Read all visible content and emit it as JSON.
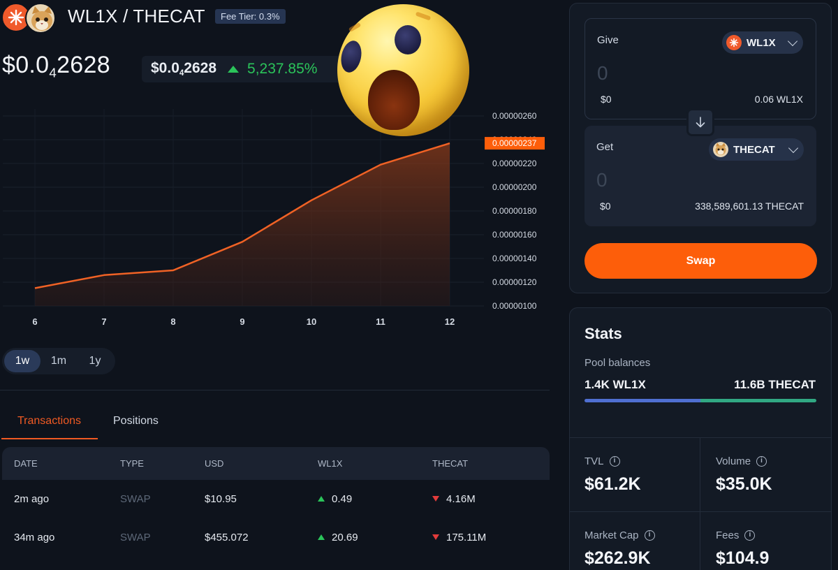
{
  "header": {
    "pair": "WL1X / THECAT",
    "fee_tier": "Fee Tier: 0.3%",
    "price_prefix": "$0.0",
    "price_sub": "4",
    "price_suffix": "2628",
    "chip_prefix": "$0.0",
    "chip_sub": "4",
    "chip_suffix": "2628",
    "change": "5,237.85%"
  },
  "chart_data": {
    "type": "area",
    "x": [
      6,
      7,
      8,
      9,
      10,
      11,
      12
    ],
    "values": [
      1.15e-06,
      1.26e-06,
      1.3e-06,
      1.54e-06,
      1.89e-06,
      2.19e-06,
      2.37e-06
    ],
    "y_ticks": [
      "0.00000260",
      "0.00000240",
      "0.00000220",
      "0.00000200",
      "0.00000180",
      "0.00000160",
      "0.00000140",
      "0.00000120",
      "0.00000100"
    ],
    "current_label": "0.00000237",
    "ylim": [
      1e-06,
      2.6e-06
    ],
    "line_color": "#f06225",
    "label_color": "#fd5e0a"
  },
  "range_buttons": [
    "1w",
    "1m",
    "1y"
  ],
  "tabs": {
    "transactions": "Transactions",
    "positions": "Positions"
  },
  "table": {
    "headers": {
      "date": "DATE",
      "type": "TYPE",
      "usd": "USD",
      "wl1x": "WL1X",
      "thecat": "THECAT"
    },
    "rows": [
      {
        "date": "2m ago",
        "type": "SWAP",
        "usd": "$10.95",
        "wl1x": "0.49",
        "thecat": "4.16M"
      },
      {
        "date": "34m ago",
        "type": "SWAP",
        "usd": "$455.072",
        "wl1x": "20.69",
        "thecat": "175.11M"
      }
    ]
  },
  "swap": {
    "give_label": "Give",
    "give_token": "WL1X",
    "give_placeholder": "0",
    "give_usd": "$0",
    "give_balance": "0.06 WL1X",
    "get_label": "Get",
    "get_token": "THECAT",
    "get_placeholder": "0",
    "get_usd": "$0",
    "get_balance": "338,589,601.13 THECAT",
    "swap_button": "Swap"
  },
  "stats": {
    "title": "Stats",
    "pool_label": "Pool balances",
    "pool_left": "1.4K WL1X",
    "pool_right": "11.6B THECAT",
    "pool_left_share": 0.5,
    "tvl_label": "TVL",
    "tvl_value": "$61.2K",
    "volume_label": "Volume",
    "volume_value": "$35.0K",
    "mcap_label": "Market Cap",
    "mcap_value": "$262.9K",
    "fees_label": "Fees",
    "fees_value": "$104.9"
  },
  "icons": {
    "info": "info-icon",
    "arrow": "arrow-down-icon",
    "chevron": "chevron-down-icon",
    "emoji": "wow-emoji"
  }
}
